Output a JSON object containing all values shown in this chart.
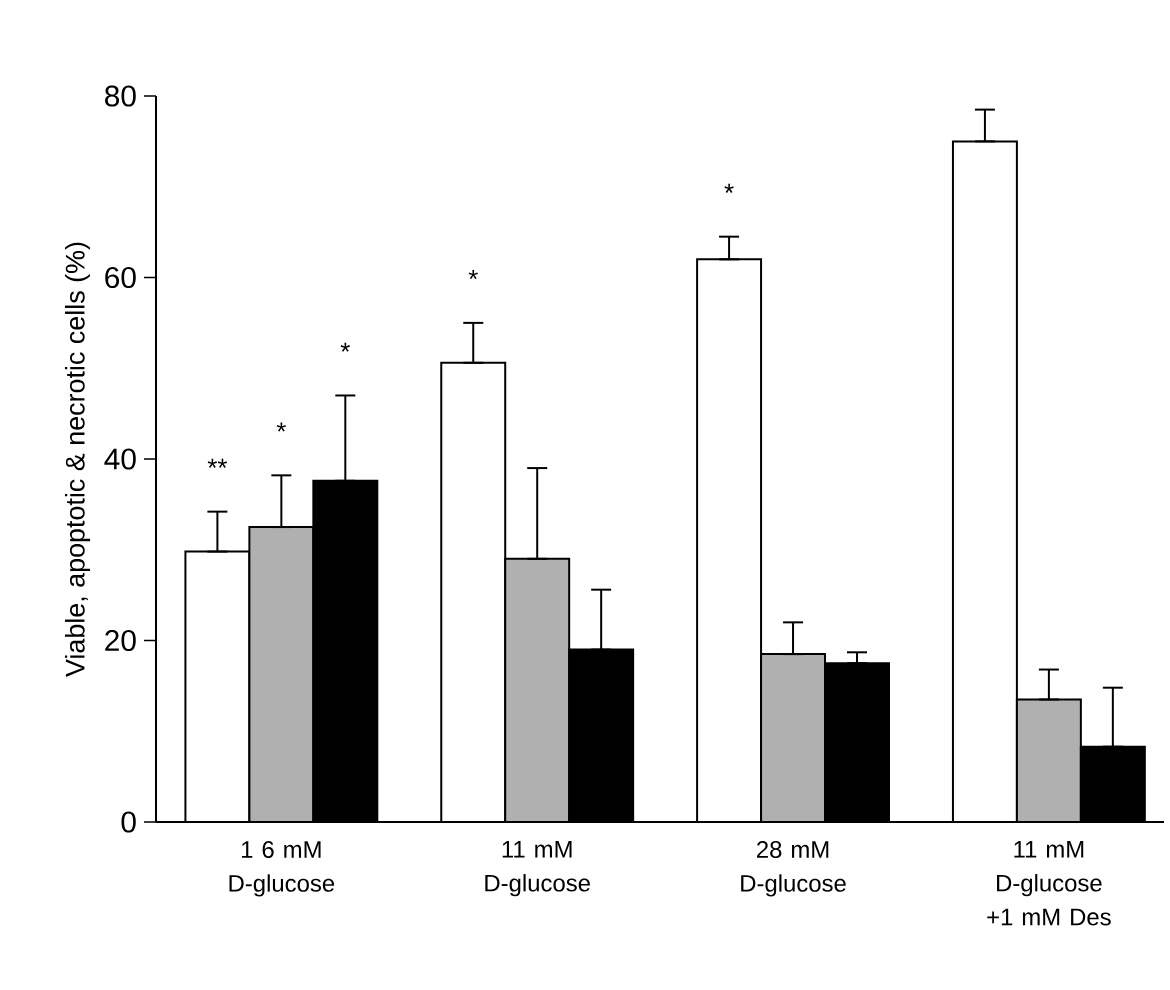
{
  "chart_data": {
    "type": "bar",
    "ylabel": "Viable, apoptotic & necrotic cells (%)",
    "categories": [
      "1 6 mM D-glucose",
      "11 mM D-glucose",
      "28 mM D-glucose",
      "11 mM D-glucose +1 mM Des"
    ],
    "series": [
      {
        "color": "#ffffff",
        "values": [
          29.8,
          50.6,
          62,
          75
        ],
        "errors": [
          [
            29.8,
            34.2
          ],
          [
            50.6,
            55
          ],
          [
            62,
            64.5
          ],
          [
            75,
            78.5
          ]
        ]
      },
      {
        "color": "#b0b0b0",
        "values": [
          32.5,
          29,
          18.5,
          13.5
        ],
        "errors": [
          [
            32.5,
            38.2
          ],
          [
            29,
            39
          ],
          [
            18.5,
            22
          ],
          [
            13.5,
            16.8
          ]
        ]
      },
      {
        "color": "#000000",
        "values": [
          37.6,
          19,
          17.5,
          8.3
        ],
        "errors": [
          [
            37.6,
            47
          ],
          [
            19,
            25.6
          ],
          [
            17.5,
            18.7
          ],
          [
            8.3,
            14.8
          ]
        ]
      }
    ],
    "ylim": [
      0,
      80
    ],
    "yticks": [
      0,
      20,
      40,
      60,
      80
    ],
    "annotations": [
      "**",
      "*",
      "*",
      "*",
      "*"
    ],
    "grid": false
  }
}
